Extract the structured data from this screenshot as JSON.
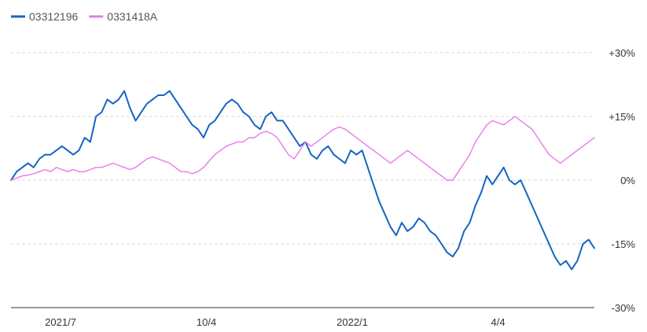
{
  "chart_data": {
    "type": "line",
    "title": "",
    "xlabel": "",
    "ylabel": "",
    "x_ticks": [
      "2021/7",
      "10/4",
      "2022/1",
      "4/4"
    ],
    "y_ticks": [
      "+30%",
      "+15%",
      "0%",
      "-15%",
      "-30%"
    ],
    "ylim": [
      -30,
      30
    ],
    "grid": true,
    "legend_position": "top-left",
    "series": [
      {
        "name": "03312196",
        "color": "#1565c0",
        "values": [
          0,
          2,
          3,
          4,
          3,
          5,
          6,
          6,
          7,
          8,
          7,
          6,
          7,
          10,
          9,
          15,
          16,
          19,
          18,
          19,
          21,
          17,
          14,
          16,
          18,
          19,
          20,
          20,
          21,
          19,
          17,
          15,
          13,
          12,
          10,
          13,
          14,
          16,
          18,
          19,
          18,
          16,
          15,
          13,
          12,
          15,
          16,
          14,
          14,
          12,
          10,
          8,
          9,
          6,
          5,
          7,
          8,
          6,
          5,
          4,
          7,
          6,
          7,
          3,
          -1,
          -5,
          -8,
          -11,
          -13,
          -10,
          -12,
          -11,
          -9,
          -10,
          -12,
          -13,
          -15,
          -17,
          -18,
          -16,
          -12,
          -10,
          -6,
          -3,
          1,
          -1,
          1,
          3,
          0,
          -1,
          0,
          -3,
          -6,
          -9,
          -12,
          -15,
          -18,
          -20,
          -19,
          -21,
          -19,
          -15,
          -14,
          -16
        ]
      },
      {
        "name": "0331418A",
        "color": "#e879e8",
        "values": [
          0,
          0.5,
          1,
          1.2,
          1.5,
          2,
          2.5,
          2,
          3,
          2.5,
          2,
          2.5,
          2,
          2,
          2.5,
          3,
          3,
          3.5,
          4,
          3.5,
          3,
          2.5,
          3,
          4,
          5,
          5.5,
          5,
          4.5,
          4,
          3,
          2,
          2,
          1.5,
          2,
          3,
          4.5,
          6,
          7,
          8,
          8.5,
          9,
          9,
          10,
          10,
          11,
          11.5,
          11,
          10,
          8,
          6,
          5,
          7,
          9,
          8,
          9,
          10,
          11,
          12,
          12.5,
          12,
          11,
          10,
          9,
          8,
          7,
          6,
          5,
          4,
          5,
          6,
          7,
          6,
          5,
          4,
          3,
          2,
          1,
          0,
          0,
          2,
          4,
          6,
          9,
          11,
          13,
          14,
          13.5,
          13,
          14,
          15,
          14,
          13,
          12,
          10,
          8,
          6,
          5,
          4,
          5,
          6,
          7,
          8,
          9,
          10
        ]
      }
    ]
  }
}
